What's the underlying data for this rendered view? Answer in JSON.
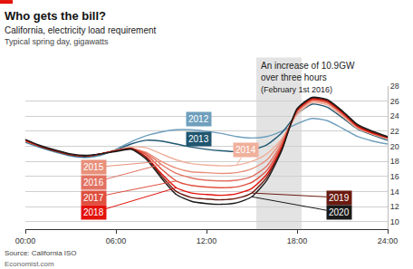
{
  "chart_data": {
    "type": "line",
    "title": "Who gets the bill?",
    "subtitle": "California, electricity load requirement",
    "y_label": "Typical spring day, gigawatts",
    "source": "Source: California ISO",
    "credit": "Economist.com",
    "x": [
      0,
      1,
      2,
      3,
      4,
      5,
      6,
      7,
      8,
      9,
      10,
      11,
      12,
      13,
      14,
      15,
      16,
      17,
      18,
      19,
      20,
      21,
      22,
      23,
      24
    ],
    "xlim": [
      0,
      24
    ],
    "xticks": [
      {
        "value": 0,
        "label": "00:00"
      },
      {
        "value": 6,
        "label": "06:00"
      },
      {
        "value": 12,
        "label": "12:00"
      },
      {
        "value": 18,
        "label": "18:00"
      },
      {
        "value": 24,
        "label": "24:00"
      }
    ],
    "ylim": [
      9,
      28
    ],
    "yticks": [
      10,
      12,
      14,
      16,
      18,
      20,
      22,
      24,
      26,
      28
    ],
    "grid": true,
    "annotations": [
      {
        "text": [
          "An increase of 10.9GW",
          "over three hours"
        ],
        "subtext": "(February 1st 2016)",
        "x_span": [
          15.3,
          18.3
        ]
      }
    ],
    "series": [
      {
        "name": "2012",
        "color": "#6f9fbd",
        "values": [
          20.5,
          19.8,
          19.2,
          18.7,
          18.5,
          18.8,
          19.6,
          20.6,
          21.4,
          21.9,
          22.2,
          22.2,
          22,
          21.7,
          21.3,
          21.1,
          21.3,
          22,
          23,
          23.7,
          23.4,
          22.4,
          21.3,
          20.7,
          20.3
        ]
      },
      {
        "name": "2013",
        "color": "#1f5670",
        "values": [
          20.6,
          19.9,
          19.3,
          18.8,
          18.6,
          18.9,
          19.5,
          20.3,
          20.8,
          20.7,
          20.3,
          19.9,
          19.6,
          19.4,
          19.3,
          19.5,
          20.2,
          21.8,
          24.3,
          25.6,
          25.2,
          23.8,
          22.3,
          21.5,
          20.8
        ]
      },
      {
        "name": "2014",
        "color": "#f0b09c",
        "values": [
          20.7,
          20,
          19.4,
          18.9,
          18.7,
          19,
          19.5,
          19.9,
          19.8,
          19,
          18.2,
          17.7,
          17.5,
          17.4,
          17.5,
          18,
          19,
          21,
          24.2,
          25.8,
          25.5,
          24,
          22.4,
          21.6,
          21
        ]
      },
      {
        "name": "2015",
        "color": "#e8907a",
        "values": [
          20.7,
          20,
          19.4,
          18.9,
          18.7,
          19,
          19.4,
          19.7,
          19.2,
          18,
          17.1,
          16.6,
          16.5,
          16.4,
          16.5,
          17,
          18.2,
          20.8,
          24.5,
          26,
          25.7,
          24.2,
          22.5,
          21.7,
          21.1
        ]
      },
      {
        "name": "2016",
        "color": "#e27262",
        "values": [
          20.8,
          20,
          19.4,
          18.9,
          18.7,
          19,
          19.4,
          19.7,
          19.1,
          17.6,
          16.4,
          15.8,
          15.5,
          15.4,
          15.5,
          16,
          17.4,
          20.5,
          24.6,
          26.1,
          25.8,
          24.3,
          22.6,
          21.7,
          21.1
        ]
      },
      {
        "name": "2017",
        "color": "#e0503f",
        "values": [
          20.8,
          20,
          19.4,
          18.9,
          18.7,
          19,
          19.4,
          19.7,
          18.9,
          17,
          15.4,
          14.8,
          14.6,
          14.5,
          14.6,
          15.2,
          16.8,
          20.2,
          24.7,
          26.2,
          25.9,
          24.4,
          22.6,
          21.7,
          21.1
        ]
      },
      {
        "name": "2018",
        "color": "#e3120b",
        "values": [
          20.8,
          20,
          19.4,
          18.9,
          18.7,
          19,
          19.4,
          19.7,
          18.6,
          16.4,
          14.5,
          13.8,
          13.6,
          13.5,
          13.7,
          14.4,
          16.3,
          19.9,
          24.8,
          26.3,
          26,
          24.5,
          22.7,
          21.8,
          21.2
        ]
      },
      {
        "name": "2019",
        "color": "#6b1a10",
        "values": [
          20.9,
          20,
          19.4,
          18.9,
          18.7,
          19,
          19.4,
          19.7,
          18.5,
          16.1,
          14,
          13.2,
          13,
          12.9,
          13.1,
          13.8,
          15.9,
          19.7,
          24.9,
          26.4,
          26.1,
          24.6,
          22.8,
          21.9,
          21.2
        ]
      },
      {
        "name": "2020",
        "color": "#1a1a1a",
        "values": [
          20.9,
          20.1,
          19.5,
          19,
          18.8,
          19,
          19.3,
          19.6,
          18.3,
          15.8,
          13.6,
          12.7,
          12.4,
          12.3,
          12.5,
          13.3,
          15.5,
          19.5,
          25,
          26.5,
          26.2,
          24.7,
          22.9,
          22,
          21.3
        ]
      }
    ]
  }
}
